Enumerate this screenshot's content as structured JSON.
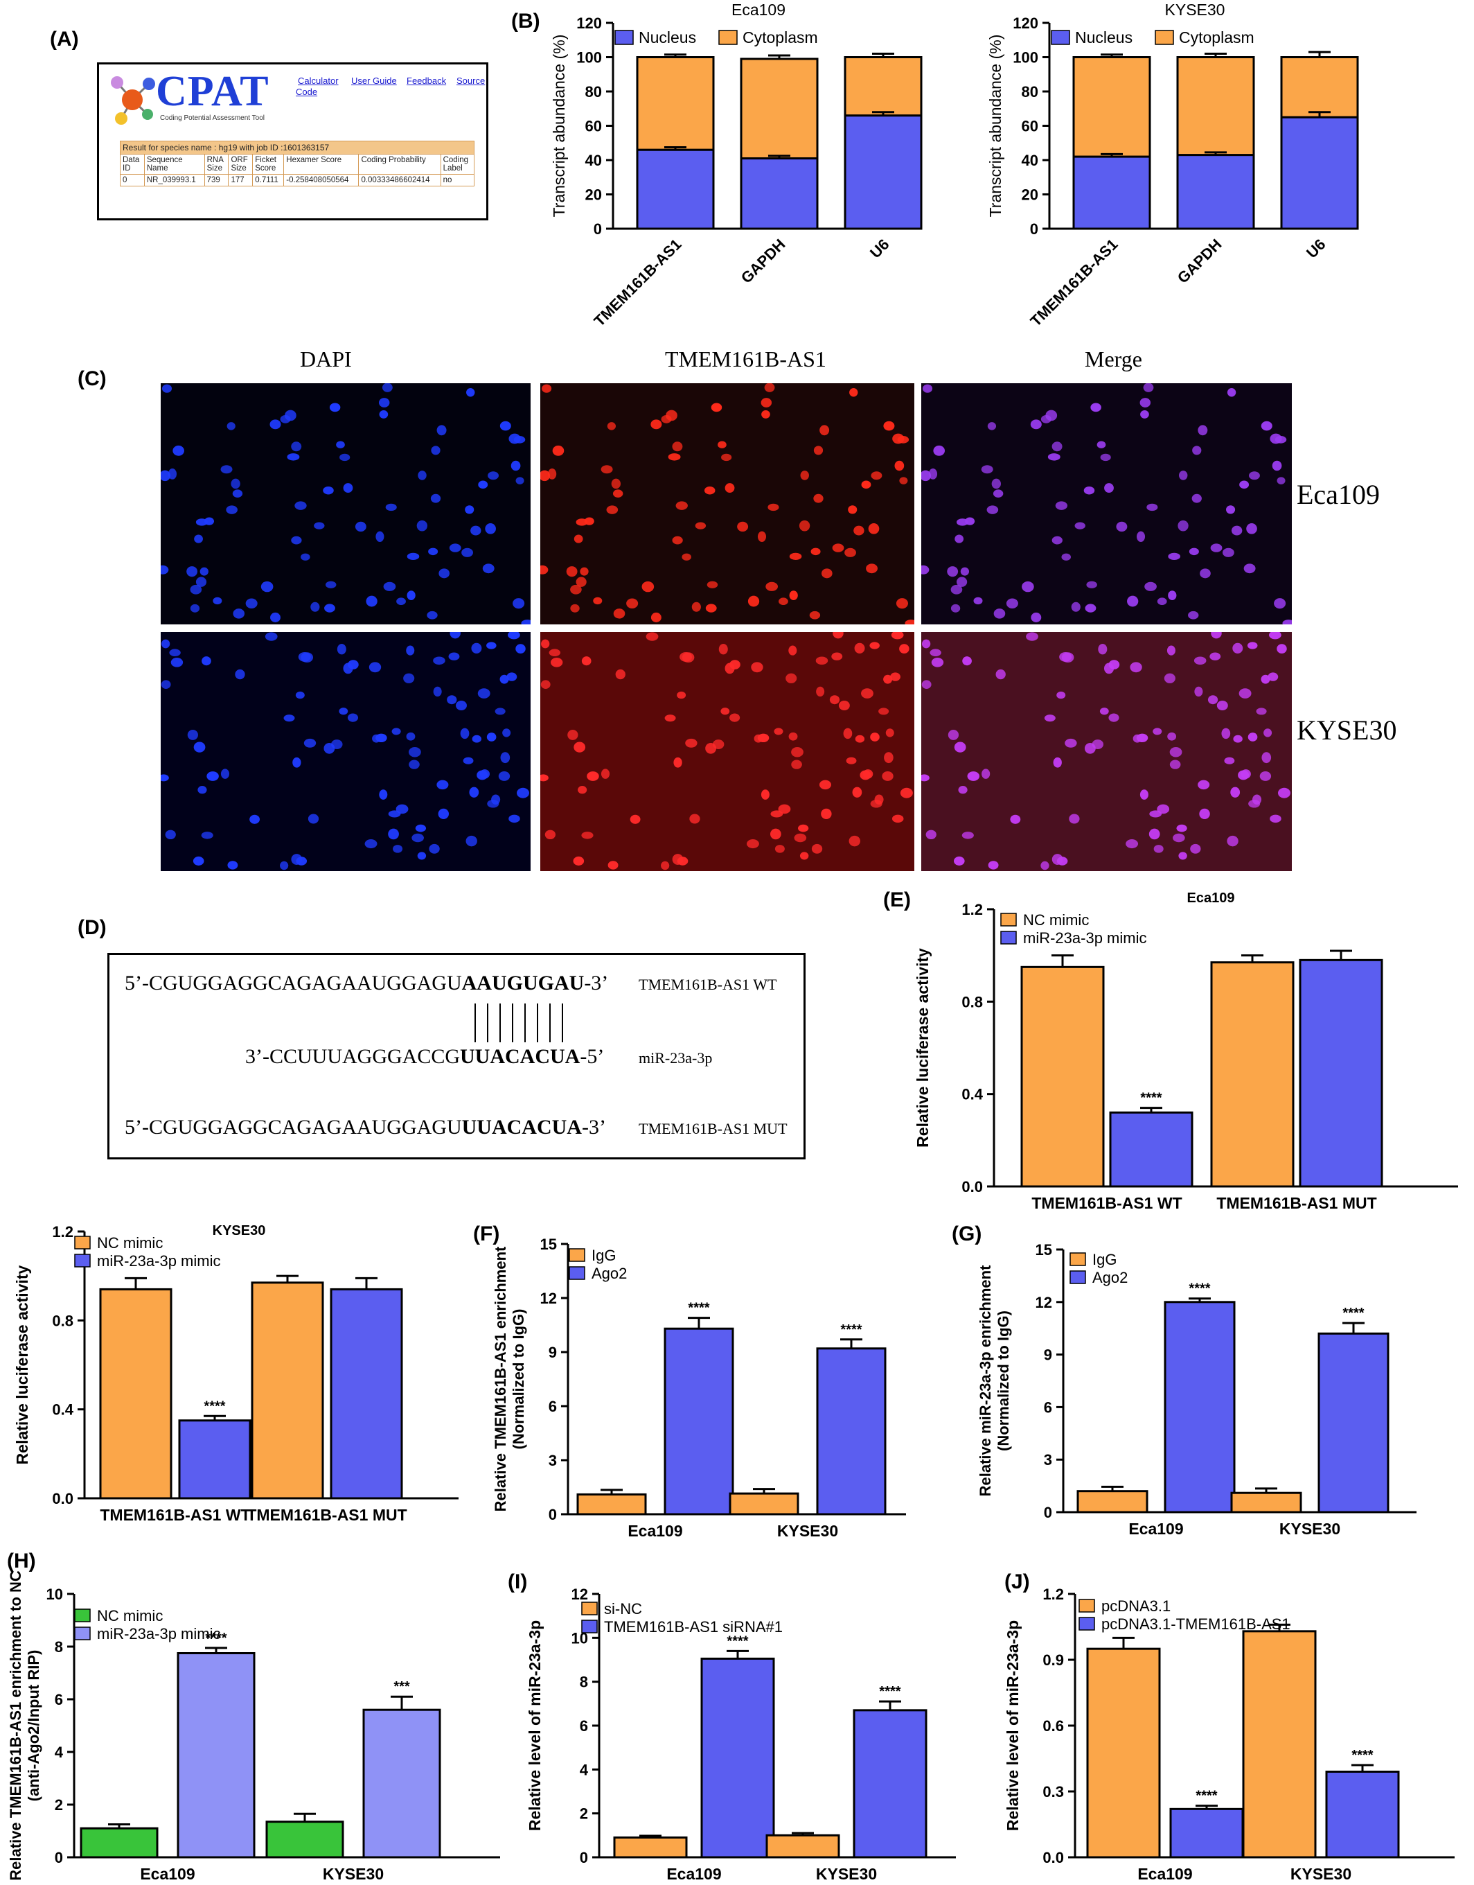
{
  "panels": {
    "A": "(A)",
    "B": "(B)",
    "C": "(C)",
    "D": "(D)",
    "E": "(E)",
    "F": "(F)",
    "G": "(G)",
    "H": "(H)",
    "I": "(I)",
    "J": "(J)"
  },
  "cpat": {
    "logo": "CPAT",
    "subtitle": "Coding Potential Assessment Tool",
    "nav": [
      "Calculator",
      "User Guide",
      "Feedback",
      "Source",
      "Code"
    ],
    "result": "Result for species name : hg19 with job ID :1601363157",
    "headers": [
      [
        "Data",
        "ID"
      ],
      [
        "Sequence",
        "Name"
      ],
      [
        "RNA",
        "Size"
      ],
      [
        "ORF",
        "Size"
      ],
      [
        "Ficket",
        "Score"
      ],
      [
        "Hexamer Score"
      ],
      [
        "Coding Probability"
      ],
      [
        "Coding",
        "Label"
      ]
    ],
    "row": [
      "0",
      "NR_039993.1",
      "739",
      "177",
      "0.7111",
      "-0.258408050564",
      "0.00333486602414",
      "no"
    ]
  },
  "microscopy": {
    "col_titles": [
      "DAPI",
      "TMEM161B-AS1",
      "Merge"
    ],
    "row_labels": [
      "Eca109",
      "KYSE30"
    ]
  },
  "sequences": {
    "wt_prefix": "5’-CGUGGAGGCAGAGAAUGGAGU",
    "wt_bold": "AAUGUGAU",
    "wt_suffix": "-3’",
    "wt_tag": "TMEM161B-AS1 WT",
    "mir_prefix": "3’-CCUUUAGGGACCG",
    "mir_bold": "UUACACUA",
    "mir_suffix": "-5’",
    "mir_tag": "miR-23a-3p",
    "mut_prefix": "5’-CGUGGAGGCAGAGAAUGGAGU",
    "mut_bold": "UUACACUA",
    "mut_suffix": "-3’",
    "mut_tag": "TMEM161B-AS1 MUT"
  },
  "colors": {
    "orange": "#fba649",
    "blue": "#5b5ef0",
    "green": "#39c43a",
    "lavender": "#8f92f6"
  },
  "chart_data": [
    {
      "id": "B1",
      "type": "bar",
      "stacked": true,
      "title": "Eca109",
      "categories": [
        "TMEM161B-AS1",
        "GAPDH",
        "U6"
      ],
      "series": [
        {
          "name": "Nucleus",
          "values": [
            46,
            41,
            66
          ],
          "errors": [
            1.5,
            1.5,
            2
          ]
        },
        {
          "name": "Cytoplasm",
          "values": [
            54,
            58,
            34
          ],
          "errors": [
            1.5,
            2,
            2
          ]
        }
      ],
      "ylabel": "Transcript abundance (%)",
      "ylim": [
        0,
        120
      ],
      "yticks": [
        "0",
        "20",
        "40",
        "60",
        "80",
        "100",
        "120"
      ],
      "legend": "top-left"
    },
    {
      "id": "B2",
      "type": "bar",
      "stacked": true,
      "title": "KYSE30",
      "categories": [
        "TMEM161B-AS1",
        "GAPDH",
        "U6"
      ],
      "series": [
        {
          "name": "Nucleus",
          "values": [
            42,
            43,
            65
          ],
          "errors": [
            1.5,
            1.5,
            3
          ]
        },
        {
          "name": "Cytoplasm",
          "values": [
            58,
            57,
            35
          ],
          "errors": [
            1.5,
            2,
            3
          ]
        }
      ],
      "ylabel": "Transcript abundance (%)",
      "ylim": [
        0,
        120
      ],
      "yticks": [
        "0",
        "20",
        "40",
        "60",
        "80",
        "100",
        "120"
      ],
      "legend": "top-left"
    },
    {
      "id": "E",
      "type": "bar",
      "title": "Eca109",
      "categories": [
        "TMEM161B-AS1 WT",
        "TMEM161B-AS1 MUT"
      ],
      "series": [
        {
          "name": "NC mimic",
          "values": [
            0.95,
            0.97
          ],
          "errors": [
            0.05,
            0.03
          ]
        },
        {
          "name": "miR-23a-3p mimic",
          "values": [
            0.32,
            0.98
          ],
          "errors": [
            0.02,
            0.04
          ]
        }
      ],
      "annotations": [
        "",
        "****",
        "",
        ""
      ],
      "ylabel": "Relative luciferase activity",
      "ylim": [
        0,
        1.2
      ],
      "yticks": [
        "0.0",
        "0.4",
        "0.8",
        "1.2"
      ],
      "legend": "top-left"
    },
    {
      "id": "KY",
      "type": "bar",
      "title": "KYSE30",
      "categories": [
        "TMEM161B-AS1 WT",
        "TMEM161B-AS1 MUT"
      ],
      "series": [
        {
          "name": "NC mimic",
          "values": [
            0.94,
            0.97
          ],
          "errors": [
            0.05,
            0.03
          ]
        },
        {
          "name": "miR-23a-3p mimic",
          "values": [
            0.35,
            0.94
          ],
          "errors": [
            0.02,
            0.05
          ]
        }
      ],
      "annotations": [
        "",
        "****",
        "",
        ""
      ],
      "ylabel": "Relative luciferase activity",
      "ylim": [
        0,
        1.2
      ],
      "yticks": [
        "0.0",
        "0.4",
        "0.8",
        "1.2"
      ],
      "legend": "top-left"
    },
    {
      "id": "F",
      "type": "bar",
      "categories": [
        "Eca109",
        "KYSE30"
      ],
      "series": [
        {
          "name": "IgG",
          "values": [
            1.1,
            1.15
          ],
          "errors": [
            0.25,
            0.25
          ]
        },
        {
          "name": "Ago2",
          "values": [
            10.3,
            9.2
          ],
          "errors": [
            0.6,
            0.5
          ]
        }
      ],
      "annotations": [
        "",
        "****",
        "",
        "****"
      ],
      "ylabel": "Relative TMEM161B-AS1 enrichment (Normalized to IgG)",
      "ylim": [
        0,
        15
      ],
      "yticks": [
        "0",
        "3",
        "6",
        "9",
        "12",
        "15"
      ],
      "legend": "top-left"
    },
    {
      "id": "G",
      "type": "bar",
      "categories": [
        "Eca109",
        "KYSE30"
      ],
      "series": [
        {
          "name": "IgG",
          "values": [
            1.2,
            1.1
          ],
          "errors": [
            0.25,
            0.25
          ]
        },
        {
          "name": "Ago2",
          "values": [
            12.0,
            10.2
          ],
          "errors": [
            0.2,
            0.6
          ]
        }
      ],
      "annotations": [
        "",
        "****",
        "",
        "****"
      ],
      "ylabel": "Relative miR-23a-3p enrichment (Normalized to IgG)",
      "ylim": [
        0,
        15
      ],
      "yticks": [
        "0",
        "3",
        "6",
        "9",
        "12",
        "15"
      ],
      "legend": "top-left"
    },
    {
      "id": "H",
      "type": "bar",
      "categories": [
        "Eca109",
        "KYSE30"
      ],
      "series": [
        {
          "name": "NC mimic",
          "values": [
            1.1,
            1.35
          ],
          "errors": [
            0.15,
            0.3
          ]
        },
        {
          "name": "miR-23a-3p mimic",
          "values": [
            7.75,
            5.6
          ],
          "errors": [
            0.2,
            0.5
          ]
        }
      ],
      "annotations": [
        "",
        "****",
        "",
        "***"
      ],
      "ylabel": "Relative TMEM161B-AS1 enrichment to NC (anti-Ago2/Input RIP)",
      "ylim": [
        0,
        10
      ],
      "yticks": [
        "0",
        "2",
        "4",
        "6",
        "8",
        "10"
      ],
      "legend": "top-left"
    },
    {
      "id": "I",
      "type": "bar",
      "categories": [
        "Eca109",
        "KYSE30"
      ],
      "series": [
        {
          "name": "si-NC",
          "values": [
            0.9,
            1.0
          ],
          "errors": [
            0.08,
            0.1
          ]
        },
        {
          "name": "TMEM161B-AS1 siRNA#1",
          "values": [
            9.05,
            6.7
          ],
          "errors": [
            0.35,
            0.4
          ]
        }
      ],
      "annotations": [
        "",
        "****",
        "",
        "****"
      ],
      "ylabel": "Relative level of miR-23a-3p",
      "ylim": [
        0,
        12
      ],
      "yticks": [
        "0",
        "2",
        "4",
        "6",
        "8",
        "10",
        "12"
      ],
      "legend": "top-left"
    },
    {
      "id": "J",
      "type": "bar",
      "categories": [
        "Eca109",
        "KYSE30"
      ],
      "series": [
        {
          "name": "pcDNA3.1",
          "values": [
            0.95,
            1.03
          ],
          "errors": [
            0.05,
            0.03
          ]
        },
        {
          "name": "pcDNA3.1-TMEM161B-AS1",
          "values": [
            0.22,
            0.39
          ],
          "errors": [
            0.015,
            0.03
          ]
        }
      ],
      "annotations": [
        "",
        "****",
        "",
        "****"
      ],
      "ylabel": "Relative level of miR-23a-3p",
      "ylim": [
        0,
        1.2
      ],
      "yticks": [
        "0.0",
        "0.3",
        "0.6",
        "0.9",
        "1.2"
      ],
      "legend": "top-left"
    }
  ]
}
